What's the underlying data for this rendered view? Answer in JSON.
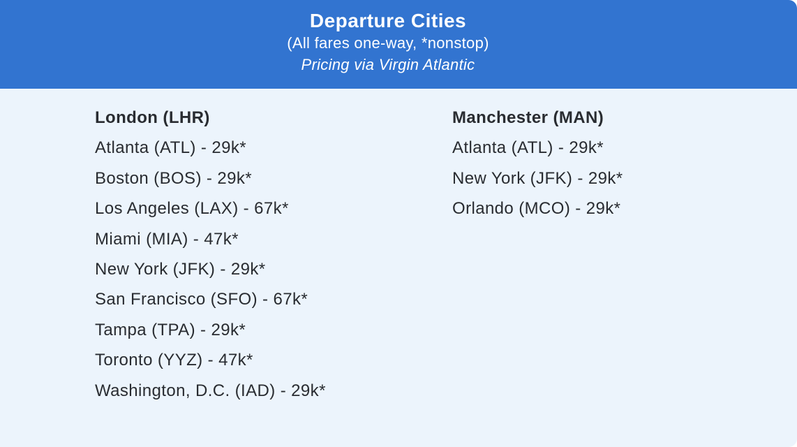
{
  "window": {
    "outer_background": "#ffffff"
  },
  "header": {
    "title": "Departure Cities",
    "subtitle": "(All fares one-way, *nonstop)",
    "pricing_note": "Pricing via Virgin Atlantic",
    "background_color": "#3274d0",
    "text_color": "#ffffff"
  },
  "fares": {
    "background_color": "#ecf4fc",
    "text_color": "#292c31",
    "columns": [
      {
        "heading": "London (LHR)",
        "items": [
          "Atlanta (ATL) - 29k*",
          "Boston (BOS) - 29k*",
          "Los Angeles (LAX) - 67k*",
          "Miami (MIA) - 47k*",
          "New York (JFK) - 29k*",
          "San Francisco (SFO) - 67k*",
          "Tampa (TPA) - 29k*",
          "Toronto (YYZ) - 47k*",
          "Washington, D.C. (IAD) - 29k*"
        ]
      },
      {
        "heading": "Manchester (MAN)",
        "items": [
          "Atlanta (ATL) - 29k*",
          "New York (JFK) - 29k*",
          "Orlando (MCO) - 29k*"
        ]
      }
    ]
  }
}
